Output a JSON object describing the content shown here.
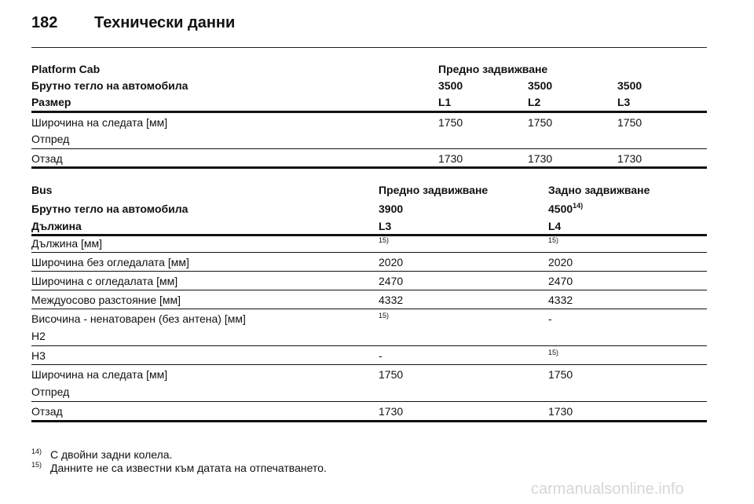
{
  "header": {
    "page_number": "182",
    "title": "Технически данни"
  },
  "table1": {
    "head": {
      "c1_r1": "Platform Cab",
      "c2_r1": "Предно задвижване",
      "c1_r2": "Брутно тегло на автомобила",
      "c2_r2": "3500",
      "c3_r2": "3500",
      "c4_r2": "3500",
      "c1_r3": "Размер",
      "c2_r3": "L1",
      "c3_r3": "L2",
      "c4_r3": "L3"
    },
    "rows": [
      {
        "label": "Широчина на следата [мм]",
        "sub": "Отпред",
        "v1": "1750",
        "v2": "1750",
        "v3": "1750"
      },
      {
        "label": "Отзад",
        "v1": "1730",
        "v2": "1730",
        "v3": "1730"
      }
    ]
  },
  "table2": {
    "head": {
      "c1_r1": "Bus",
      "c2_r1": "Предно задвижване",
      "c3_r1": "Задно задвижване",
      "c1_r2": "Брутно тегло на автомобила",
      "c2_r2": "3900",
      "c3_r2": "4500",
      "c3_r2_sup": "14)",
      "c1_r3": "Дължина",
      "c2_r3": "L3",
      "c3_r3": "L4"
    },
    "rows": [
      {
        "label": "Дължина [мм]",
        "v1": "15)",
        "v2": "15)"
      },
      {
        "label": "Широчина без огледалата [мм]",
        "v1": "2020",
        "v2": "2020"
      },
      {
        "label": "Широчина с огледалата [мм]",
        "v1": "2470",
        "v2": "2470"
      },
      {
        "label": "Междуосово разстояние [мм]",
        "v1": "4332",
        "v2": "4332"
      },
      {
        "label": "Височина - ненатоварен (без антена) [мм]",
        "sub": "H2",
        "v1": "15)",
        "v2": "-"
      },
      {
        "label": "H3",
        "v1": "-",
        "v2": "15)"
      },
      {
        "label": "Широчина на следата [мм]",
        "sub": "Отпред",
        "v1": "1750",
        "v2": "1750"
      },
      {
        "label": "Отзад",
        "v1": "1730",
        "v2": "1730"
      }
    ]
  },
  "footnotes": [
    {
      "mark": "14)",
      "text": "С двойни задни колела."
    },
    {
      "mark": "15)",
      "text": "Данните не са известни към датата на отпечатването."
    }
  ],
  "watermark": "carmanualsonline.info"
}
